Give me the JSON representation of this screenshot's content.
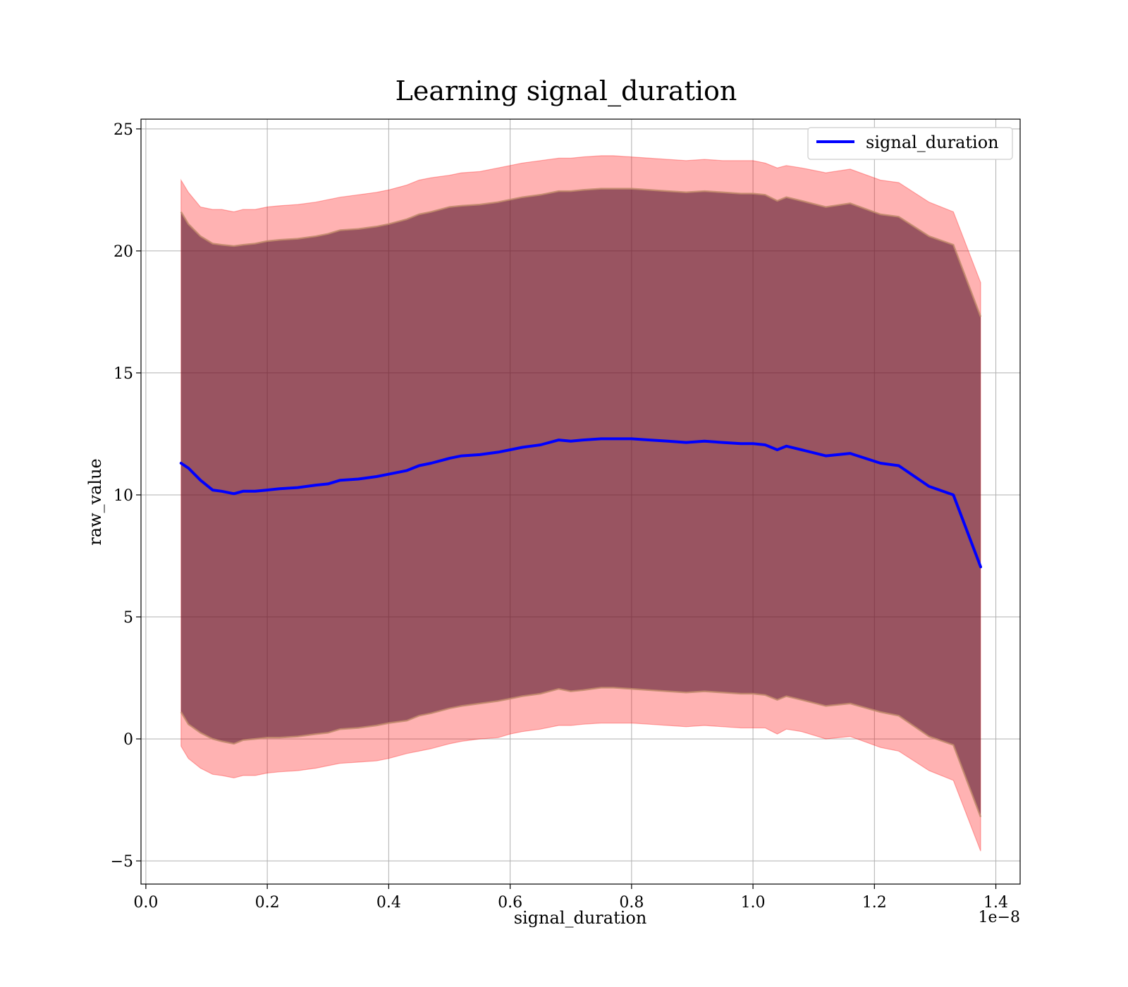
{
  "chart_data": {
    "type": "area",
    "title": "Learning signal_duration",
    "xlabel": "signal_duration",
    "ylabel": "raw_value",
    "x_offset_text": "1e−8",
    "xlim": [
      -0.008,
      1.44
    ],
    "ylim": [
      -5.95,
      25.4
    ],
    "x_ticks": [
      0.0,
      0.2,
      0.4,
      0.6,
      0.8,
      1.0,
      1.2,
      1.4
    ],
    "x_tick_labels": [
      "0.0",
      "0.2",
      "0.4",
      "0.6",
      "0.8",
      "1.0",
      "1.2",
      "1.4"
    ],
    "y_ticks": [
      -5,
      0,
      5,
      10,
      15,
      20,
      25
    ],
    "y_tick_labels": [
      "−5",
      "0",
      "5",
      "10",
      "15",
      "20",
      "25"
    ],
    "grid": true,
    "legend": {
      "position": "top-right"
    },
    "colors": {
      "line": "#0000ff",
      "outer_band": "#ff0000",
      "inner_band": "#5a1a2e",
      "grid": "#b0b0b0"
    },
    "x": [
      0.058,
      0.07,
      0.09,
      0.11,
      0.125,
      0.145,
      0.16,
      0.18,
      0.2,
      0.22,
      0.25,
      0.28,
      0.3,
      0.32,
      0.35,
      0.38,
      0.4,
      0.43,
      0.45,
      0.47,
      0.5,
      0.52,
      0.55,
      0.58,
      0.6,
      0.62,
      0.65,
      0.68,
      0.7,
      0.72,
      0.75,
      0.77,
      0.8,
      0.83,
      0.86,
      0.89,
      0.92,
      0.95,
      0.98,
      1.0,
      1.02,
      1.04,
      1.055,
      1.08,
      1.12,
      1.16,
      1.21,
      1.24,
      1.29,
      1.33,
      1.375
    ],
    "series": [
      {
        "name": "signal_duration",
        "values": [
          11.3,
          11.1,
          10.6,
          10.2,
          10.15,
          10.05,
          10.15,
          10.15,
          10.2,
          10.25,
          10.3,
          10.4,
          10.45,
          10.6,
          10.65,
          10.75,
          10.85,
          11.0,
          11.2,
          11.3,
          11.5,
          11.6,
          11.65,
          11.75,
          11.85,
          11.95,
          12.05,
          12.25,
          12.2,
          12.25,
          12.3,
          12.3,
          12.3,
          12.25,
          12.2,
          12.15,
          12.2,
          12.15,
          12.1,
          12.1,
          12.05,
          11.85,
          12.0,
          11.85,
          11.6,
          11.7,
          11.3,
          11.2,
          10.35,
          10.0,
          7.05
        ]
      }
    ],
    "outer_upper": [
      22.9,
      22.4,
      21.8,
      21.7,
      21.7,
      21.6,
      21.7,
      21.7,
      21.8,
      21.85,
      21.9,
      22.0,
      22.1,
      22.2,
      22.3,
      22.4,
      22.5,
      22.7,
      22.9,
      23.0,
      23.1,
      23.2,
      23.25,
      23.4,
      23.5,
      23.6,
      23.7,
      23.8,
      23.8,
      23.85,
      23.9,
      23.9,
      23.85,
      23.8,
      23.75,
      23.7,
      23.75,
      23.7,
      23.7,
      23.7,
      23.6,
      23.4,
      23.5,
      23.4,
      23.2,
      23.35,
      22.9,
      22.8,
      22.0,
      21.6,
      18.7
    ],
    "outer_lower": [
      -0.3,
      -0.8,
      -1.2,
      -1.45,
      -1.5,
      -1.6,
      -1.5,
      -1.5,
      -1.4,
      -1.35,
      -1.3,
      -1.2,
      -1.1,
      -1.0,
      -0.95,
      -0.9,
      -0.8,
      -0.6,
      -0.5,
      -0.4,
      -0.2,
      -0.1,
      0.0,
      0.05,
      0.2,
      0.3,
      0.4,
      0.55,
      0.55,
      0.6,
      0.65,
      0.65,
      0.65,
      0.6,
      0.55,
      0.5,
      0.55,
      0.5,
      0.45,
      0.45,
      0.45,
      0.2,
      0.4,
      0.3,
      0.0,
      0.1,
      -0.35,
      -0.5,
      -1.3,
      -1.7,
      -4.6
    ],
    "inner_upper": [
      21.6,
      21.1,
      20.6,
      20.3,
      20.25,
      20.2,
      20.25,
      20.3,
      20.4,
      20.45,
      20.5,
      20.6,
      20.7,
      20.85,
      20.9,
      21.0,
      21.1,
      21.3,
      21.5,
      21.6,
      21.8,
      21.85,
      21.9,
      22.0,
      22.1,
      22.2,
      22.3,
      22.45,
      22.45,
      22.5,
      22.55,
      22.55,
      22.55,
      22.5,
      22.45,
      22.4,
      22.45,
      22.4,
      22.35,
      22.35,
      22.3,
      22.05,
      22.2,
      22.05,
      21.8,
      21.95,
      21.5,
      21.4,
      20.6,
      20.25,
      17.3
    ],
    "inner_lower": [
      1.1,
      0.6,
      0.25,
      0.0,
      -0.1,
      -0.2,
      -0.05,
      0.0,
      0.05,
      0.05,
      0.1,
      0.2,
      0.25,
      0.4,
      0.45,
      0.55,
      0.65,
      0.75,
      0.95,
      1.05,
      1.25,
      1.35,
      1.45,
      1.55,
      1.65,
      1.75,
      1.85,
      2.05,
      1.95,
      2.0,
      2.1,
      2.1,
      2.05,
      2.0,
      1.95,
      1.9,
      1.95,
      1.9,
      1.85,
      1.85,
      1.8,
      1.6,
      1.75,
      1.6,
      1.35,
      1.45,
      1.1,
      0.95,
      0.1,
      -0.25,
      -3.2
    ]
  }
}
